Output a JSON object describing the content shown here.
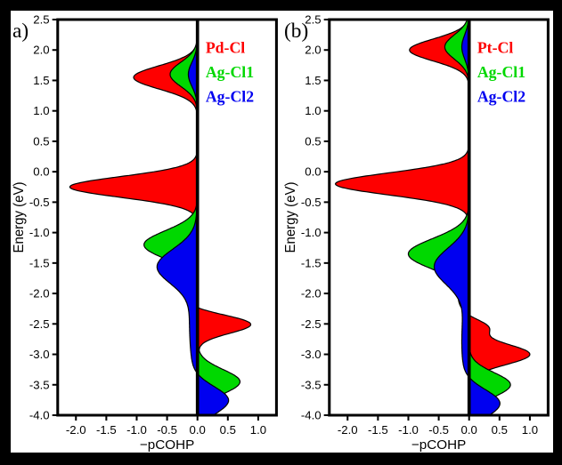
{
  "figure": {
    "description": "Two-panel -pCOHP vs Energy bonding analysis plot",
    "background": "#ffffff",
    "frame_color": "#000000"
  },
  "chart_data": [
    {
      "type": "area",
      "panel_label": "a)",
      "title": "",
      "xlabel": "−pCOHP",
      "ylabel": "Energy (eV)",
      "xlim": [
        -2.3,
        1.3
      ],
      "ylim": [
        -4.0,
        2.5
      ],
      "xticks": [
        -2.0,
        -1.5,
        -1.0,
        -0.5,
        0.0,
        0.5,
        1.0
      ],
      "yticks": [
        2.5,
        2.0,
        1.5,
        1.0,
        0.5,
        0.0,
        -0.5,
        -1.0,
        -1.5,
        -2.0,
        -2.5,
        -3.0,
        -3.5,
        -4.0
      ],
      "orientation": "horizontal-value-vs-energy",
      "grid": false,
      "legend_position": "top-right",
      "legend": [
        "Pd-Cl",
        "Ag-Cl1",
        "Ag-Cl2"
      ],
      "zero_line": true,
      "series": [
        {
          "name": "Pd-Cl",
          "color": "#fe0000",
          "peaks": [
            {
              "center": 1.55,
              "amplitude": -1.05,
              "width": 0.19
            },
            {
              "center": -0.25,
              "amplitude": -2.1,
              "width": 0.17
            },
            {
              "center": -2.15,
              "amplitude": -0.2,
              "width": 0.25
            },
            {
              "center": -2.5,
              "amplitude": 0.95,
              "width": 0.15
            },
            {
              "center": -3.35,
              "amplitude": 0.45,
              "width": 0.16
            }
          ]
        },
        {
          "name": "Ag-Cl1",
          "color": "#00d800",
          "peaks": [
            {
              "center": 1.6,
              "amplitude": -0.45,
              "width": 0.2
            },
            {
              "center": -1.2,
              "amplitude": -0.88,
              "width": 0.23
            },
            {
              "center": -3.45,
              "amplitude": 0.7,
              "width": 0.2
            }
          ]
        },
        {
          "name": "Ag-Cl2",
          "color": "#0000f0",
          "peaks": [
            {
              "center": 1.6,
              "amplitude": -0.15,
              "width": 0.2
            },
            {
              "center": -1.55,
              "amplitude": -0.6,
              "width": 0.28
            },
            {
              "center": -2.5,
              "amplitude": -0.13,
              "width": 0.8
            },
            {
              "center": -3.75,
              "amplitude": 0.55,
              "width": 0.22
            }
          ]
        }
      ]
    },
    {
      "type": "area",
      "panel_label": "(b)",
      "title": "",
      "xlabel": "−pCOHP",
      "ylabel": "Energy (eV)",
      "xlim": [
        -2.3,
        1.3
      ],
      "ylim": [
        -4.0,
        2.5
      ],
      "xticks": [
        -2.0,
        -1.5,
        -1.0,
        -0.5,
        0.0,
        0.5,
        1.0
      ],
      "yticks": [
        2.5,
        2.0,
        1.5,
        1.0,
        0.5,
        0.0,
        -0.5,
        -1.0,
        -1.5,
        -2.0,
        -2.5,
        -3.0,
        -3.5,
        -4.0
      ],
      "orientation": "horizontal-value-vs-energy",
      "grid": false,
      "legend_position": "top-right",
      "legend": [
        "Pt-Cl",
        "Ag-Cl1",
        "Ag-Cl2"
      ],
      "zero_line": true,
      "series": [
        {
          "name": "Pt-Cl",
          "color": "#fe0000",
          "peaks": [
            {
              "center": 2.0,
              "amplitude": -0.98,
              "width": 0.18
            },
            {
              "center": -0.2,
              "amplitude": -2.2,
              "width": 0.18
            },
            {
              "center": -2.05,
              "amplitude": -0.18,
              "width": 0.25
            },
            {
              "center": -2.55,
              "amplitude": 0.32,
              "width": 0.12
            },
            {
              "center": -3.0,
              "amplitude": 1.0,
              "width": 0.17
            }
          ]
        },
        {
          "name": "Ag-Cl1",
          "color": "#00d800",
          "peaks": [
            {
              "center": 2.05,
              "amplitude": -0.4,
              "width": 0.2
            },
            {
              "center": -1.35,
              "amplitude": -1.0,
              "width": 0.25
            },
            {
              "center": -3.5,
              "amplitude": 0.68,
              "width": 0.2
            }
          ]
        },
        {
          "name": "Ag-Cl2",
          "color": "#0000f0",
          "peaks": [
            {
              "center": 2.05,
              "amplitude": -0.12,
              "width": 0.2
            },
            {
              "center": -1.55,
              "amplitude": -0.55,
              "width": 0.3
            },
            {
              "center": -2.8,
              "amplitude": -0.12,
              "width": 0.7
            },
            {
              "center": -3.8,
              "amplitude": 0.55,
              "width": 0.22
            }
          ]
        }
      ]
    }
  ]
}
